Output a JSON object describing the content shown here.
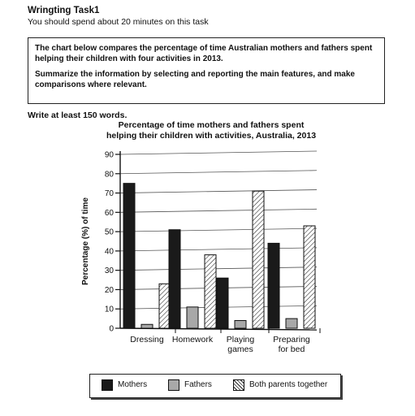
{
  "header": {
    "title": "Wringting Task1",
    "subtitle": "You should spend about 20 minutes on this task"
  },
  "prompt": {
    "paragraph1": "The chart below compares the percentage of time Australian mothers and fathers spent helping their children with four activities in 2013.",
    "paragraph2": "Summarize the information by selecting and reporting the main features, and make comparisons where relevant."
  },
  "instruction": "Write at least 150 words.",
  "colors": {
    "mothers": "#1a1a1a",
    "fathers": "#a8a8a8",
    "both": "hatched"
  },
  "chart_data": {
    "type": "bar",
    "title": "Percentage of time mothers and fathers spent\nhelping their children with activities, Australia, 2013",
    "ylabel": "Percentage (%) of time",
    "xlabel": "",
    "ylim": [
      0,
      90
    ],
    "yticks": [
      0,
      10,
      20,
      30,
      40,
      50,
      60,
      70,
      80,
      90
    ],
    "categories": [
      "Dressing",
      "Homework",
      "Playing\ngames",
      "Preparing\nfor bed"
    ],
    "series": [
      {
        "name": "Mothers",
        "values": [
          75,
          51,
          26,
          44
        ]
      },
      {
        "name": "Fathers",
        "values": [
          2,
          11,
          4,
          5
        ]
      },
      {
        "name": "Both parents together",
        "values": [
          23,
          38,
          71,
          53
        ]
      }
    ],
    "grid": true,
    "legend": "bottom"
  }
}
